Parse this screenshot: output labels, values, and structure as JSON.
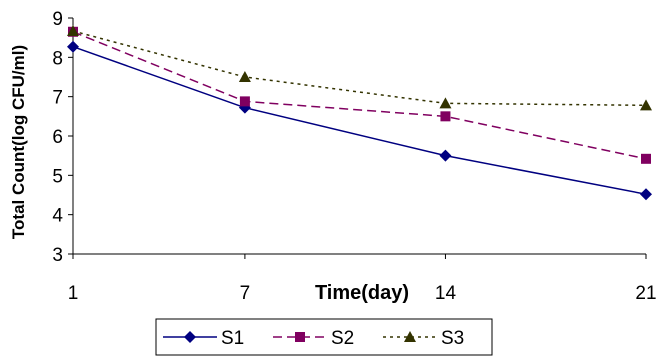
{
  "chart_data": {
    "type": "line",
    "title": "",
    "xlabel": "Time(day)",
    "ylabel": "Total Count(log CFU/ml)",
    "x": [
      1,
      7,
      14,
      21
    ],
    "x_tick_labels": [
      "1",
      "7",
      "14",
      "21"
    ],
    "ylim": [
      3,
      9
    ],
    "y_ticks": [
      3,
      4,
      5,
      6,
      7,
      8,
      9
    ],
    "y_tick_labels": [
      "3",
      "4",
      "5",
      "6",
      "7",
      "8",
      "9"
    ],
    "grid": false,
    "legend_position": "bottom",
    "series": [
      {
        "name": "S1",
        "values": [
          8.27,
          6.72,
          5.5,
          4.52
        ],
        "color": "#000080",
        "marker": "diamond",
        "line_style": "solid"
      },
      {
        "name": "S2",
        "values": [
          8.65,
          6.88,
          6.5,
          5.42
        ],
        "color": "#800060",
        "marker": "square",
        "line_style": "dashed"
      },
      {
        "name": "S3",
        "values": [
          8.67,
          7.5,
          6.83,
          6.78
        ],
        "color": "#333300",
        "marker": "triangle",
        "line_style": "dotted"
      }
    ]
  }
}
